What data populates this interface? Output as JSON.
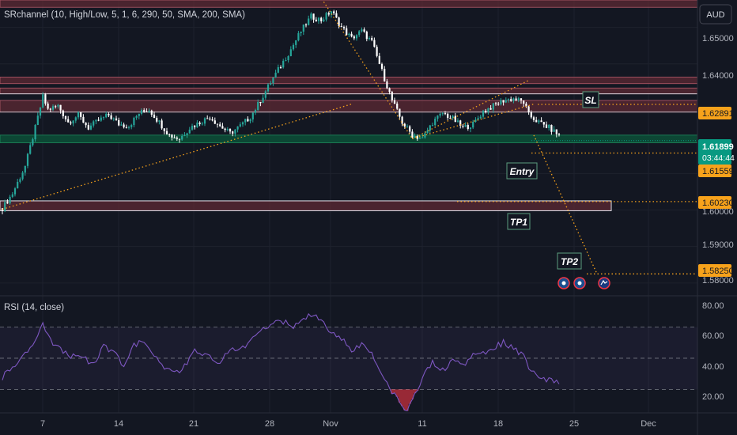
{
  "header": {
    "indicator_label": "SRchannel (10, High/Low, 5, 1, 6, 290, 50, SMA, 200, SMA)",
    "currency_button": "AUD"
  },
  "price_axis": {
    "ticks": [
      "1.65000",
      "1.64000",
      "1.59000",
      "1.58000"
    ],
    "tags": [
      {
        "text": "1.62891",
        "color": "#f7a21b",
        "text_color": "#131722"
      },
      {
        "text": "1.61899",
        "color": "#089981",
        "text_color": "#ffffff"
      },
      {
        "text": "03:44:44",
        "color": "#089981",
        "text_color": "#ffffff"
      },
      {
        "text": "1.61559",
        "color": "#f7a21b",
        "text_color": "#131722"
      },
      {
        "text": "1.60230",
        "color": "#f7a21b",
        "text_color": "#131722"
      },
      {
        "text": "1.58250",
        "color": "#f7a21b",
        "text_color": "#131722"
      }
    ],
    "hidden_tick": "1.60000"
  },
  "annotations": {
    "sl": "SL",
    "entry": "Entry",
    "tp1": "TP1",
    "tp2": "TP2"
  },
  "rsi": {
    "label": "RSI (14, close)",
    "ticks": [
      "80.00",
      "60.00",
      "40.00",
      "20.00"
    ]
  },
  "time_axis": {
    "labels": [
      "7",
      "14",
      "21",
      "28",
      "Nov",
      "11",
      "18",
      "25",
      "Dec"
    ]
  },
  "colors": {
    "background": "#131722",
    "up": "#089981",
    "down": "#f23645",
    "candle_up": "#26a69a",
    "candle_down": "#ffffff",
    "trend": "#f7a21b",
    "rsi_line": "#7e57c2",
    "resistance_zone": "#5d2a34",
    "support_zone": "#0c4a36"
  },
  "chart_data": {
    "type": "candlestick",
    "symbol": "AUD",
    "price_ylim": [
      1.5765,
      1.6575
    ],
    "levels": {
      "sl": 1.62891,
      "last": 1.61899,
      "entry": 1.61559,
      "tp1": 1.6023,
      "tp2": 1.5825
    },
    "zones": [
      {
        "type": "resistance",
        "top": 1.6575,
        "bottom": 1.6555
      },
      {
        "type": "resistance",
        "top": 1.6364,
        "bottom": 1.6346
      },
      {
        "type": "resistance",
        "top": 1.6334,
        "bottom": 1.6318
      },
      {
        "type": "resistance",
        "top": 1.63,
        "bottom": 1.6268
      },
      {
        "type": "support",
        "top": 1.6205,
        "bottom": 1.6184
      },
      {
        "type": "resistance",
        "top": 1.6025,
        "bottom": 1.5998
      }
    ],
    "path_points": [
      [
        0,
        1.6005
      ],
      [
        4,
        1.6045
      ],
      [
        9,
        1.612
      ],
      [
        13,
        1.6225
      ],
      [
        16,
        1.631
      ],
      [
        18,
        1.6275
      ],
      [
        22,
        1.6285
      ],
      [
        26,
        1.624
      ],
      [
        30,
        1.626
      ],
      [
        34,
        1.6225
      ],
      [
        38,
        1.6245
      ],
      [
        42,
        1.626
      ],
      [
        46,
        1.6235
      ],
      [
        50,
        1.623
      ],
      [
        54,
        1.6265
      ],
      [
        58,
        1.6275
      ],
      [
        62,
        1.624
      ],
      [
        66,
        1.6205
      ],
      [
        70,
        1.6195
      ],
      [
        74,
        1.6225
      ],
      [
        78,
        1.624
      ],
      [
        82,
        1.6255
      ],
      [
        86,
        1.623
      ],
      [
        90,
        1.621
      ],
      [
        94,
        1.623
      ],
      [
        98,
        1.6255
      ],
      [
        102,
        1.63
      ],
      [
        106,
        1.635
      ],
      [
        110,
        1.6395
      ],
      [
        114,
        1.644
      ],
      [
        118,
        1.649
      ],
      [
        122,
        1.653
      ],
      [
        126,
        1.652
      ],
      [
        130,
        1.6545
      ],
      [
        134,
        1.65
      ],
      [
        138,
        1.647
      ],
      [
        142,
        1.649
      ],
      [
        146,
        1.646
      ],
      [
        150,
        1.638
      ],
      [
        154,
        1.63
      ],
      [
        158,
        1.624
      ],
      [
        162,
        1.6205
      ],
      [
        166,
        1.6195
      ],
      [
        170,
        1.624
      ],
      [
        174,
        1.6265
      ],
      [
        178,
        1.625
      ],
      [
        182,
        1.6225
      ],
      [
        186,
        1.6235
      ],
      [
        190,
        1.627
      ],
      [
        194,
        1.6285
      ],
      [
        198,
        1.63
      ],
      [
        202,
        1.6305
      ],
      [
        206,
        1.6295
      ],
      [
        208,
        1.626
      ],
      [
        212,
        1.624
      ],
      [
        216,
        1.6225
      ],
      [
        220,
        1.6205
      ]
    ],
    "trend_lines": [
      {
        "from": [
          0,
          1.6002
        ],
        "to": [
          138,
          1.629
        ]
      },
      {
        "from": [
          162,
          1.6195
        ],
        "to": [
          210,
          1.629
        ]
      },
      {
        "from": [
          162,
          1.6195
        ],
        "to": [
          208,
          1.6355
        ]
      },
      {
        "from": [
          127,
          1.657
        ],
        "to": [
          162,
          1.6195
        ]
      },
      {
        "from": [
          210,
          1.6205
        ],
        "to": [
          235,
          1.5825
        ]
      }
    ],
    "rsi": {
      "ylim": [
        15,
        90
      ],
      "levels": [
        70,
        50,
        30
      ],
      "points": [
        [
          0,
          38
        ],
        [
          6,
          46
        ],
        [
          12,
          58
        ],
        [
          16,
          72
        ],
        [
          20,
          60
        ],
        [
          26,
          52
        ],
        [
          32,
          50
        ],
        [
          36,
          46
        ],
        [
          40,
          57
        ],
        [
          44,
          54
        ],
        [
          48,
          45
        ],
        [
          52,
          58
        ],
        [
          56,
          61
        ],
        [
          60,
          52
        ],
        [
          64,
          44
        ],
        [
          70,
          40
        ],
        [
          76,
          55
        ],
        [
          82,
          52
        ],
        [
          86,
          46
        ],
        [
          90,
          56
        ],
        [
          94,
          55
        ],
        [
          98,
          60
        ],
        [
          102,
          68
        ],
        [
          106,
          72
        ],
        [
          110,
          75
        ],
        [
          114,
          70
        ],
        [
          118,
          73
        ],
        [
          122,
          78
        ],
        [
          126,
          74
        ],
        [
          130,
          66
        ],
        [
          134,
          63
        ],
        [
          138,
          55
        ],
        [
          142,
          58
        ],
        [
          146,
          52
        ],
        [
          150,
          40
        ],
        [
          154,
          28
        ],
        [
          158,
          20
        ],
        [
          160,
          17
        ],
        [
          163,
          26
        ],
        [
          166,
          38
        ],
        [
          170,
          47
        ],
        [
          174,
          42
        ],
        [
          178,
          48
        ],
        [
          182,
          45
        ],
        [
          186,
          52
        ],
        [
          190,
          53
        ],
        [
          194,
          57
        ],
        [
          198,
          60
        ],
        [
          202,
          56
        ],
        [
          206,
          52
        ],
        [
          208,
          44
        ],
        [
          212,
          38
        ],
        [
          216,
          36
        ],
        [
          220,
          34
        ]
      ]
    }
  }
}
